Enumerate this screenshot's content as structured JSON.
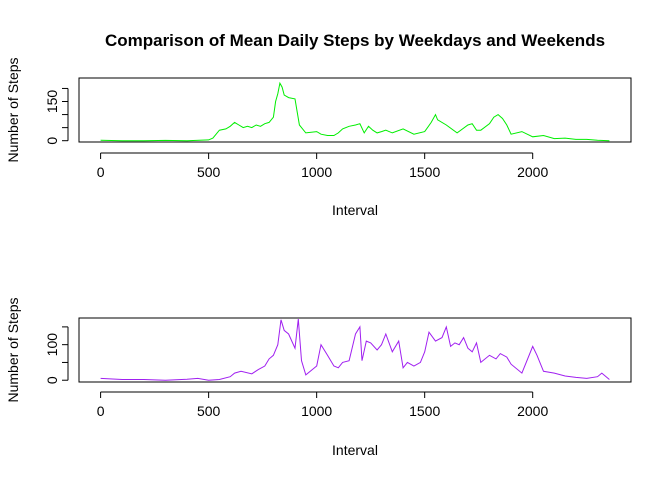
{
  "chart_data": [
    {
      "type": "line",
      "title": "Comparison of Mean Daily Steps by Weekdays and Weekends",
      "xlabel": "Interval",
      "ylabel": "Number of Steps",
      "xlim": [
        -100,
        2455
      ],
      "ylim": [
        -5,
        240
      ],
      "xticks": [
        0,
        500,
        1000,
        1500,
        2000
      ],
      "yticks": [
        0,
        50,
        100,
        150,
        200
      ],
      "ytick_labels": [
        "0",
        "",
        "",
        "150",
        ""
      ],
      "color": "#00ee00",
      "series": [
        {
          "x": [
            0,
            100,
            200,
            300,
            400,
            500,
            520,
            550,
            580,
            600,
            620,
            640,
            660,
            680,
            700,
            720,
            740,
            760,
            780,
            800,
            810,
            820,
            830,
            840,
            850,
            860,
            870,
            900,
            910,
            920,
            950,
            1000,
            1020,
            1050,
            1080,
            1100,
            1120,
            1150,
            1180,
            1200,
            1220,
            1240,
            1260,
            1280,
            1300,
            1320,
            1350,
            1400,
            1450,
            1500,
            1530,
            1550,
            1560,
            1600,
            1650,
            1700,
            1720,
            1740,
            1760,
            1800,
            1820,
            1840,
            1860,
            1880,
            1900,
            1950,
            2000,
            2050,
            2100,
            2150,
            2200,
            2250,
            2300,
            2355
          ],
          "y": [
            2,
            0,
            0,
            1,
            0,
            3,
            10,
            40,
            45,
            55,
            70,
            60,
            50,
            55,
            50,
            60,
            55,
            65,
            70,
            90,
            150,
            180,
            220,
            205,
            175,
            170,
            165,
            160,
            110,
            60,
            30,
            35,
            25,
            20,
            20,
            30,
            45,
            55,
            60,
            65,
            30,
            55,
            40,
            30,
            35,
            40,
            30,
            45,
            25,
            35,
            70,
            100,
            80,
            60,
            30,
            60,
            65,
            40,
            40,
            65,
            90,
            100,
            85,
            60,
            25,
            35,
            15,
            20,
            8,
            10,
            5,
            5,
            2,
            0
          ]
        }
      ]
    },
    {
      "type": "line",
      "title": "",
      "xlabel": "Interval",
      "ylabel": "Number of Steps",
      "xlim": [
        -100,
        2455
      ],
      "ylim": [
        -5,
        175
      ],
      "xticks": [
        0,
        500,
        1000,
        1500,
        2000
      ],
      "yticks": [
        0,
        50,
        100,
        150
      ],
      "ytick_labels": [
        "0",
        "",
        "100",
        ""
      ],
      "color": "#a020f0",
      "series": [
        {
          "x": [
            0,
            100,
            200,
            300,
            400,
            450,
            500,
            550,
            600,
            620,
            650,
            700,
            730,
            760,
            780,
            800,
            820,
            835,
            850,
            870,
            900,
            915,
            930,
            950,
            1000,
            1020,
            1050,
            1080,
            1100,
            1120,
            1150,
            1180,
            1200,
            1210,
            1230,
            1250,
            1280,
            1300,
            1320,
            1350,
            1380,
            1400,
            1420,
            1450,
            1480,
            1500,
            1520,
            1550,
            1580,
            1600,
            1620,
            1640,
            1660,
            1680,
            1700,
            1720,
            1740,
            1760,
            1800,
            1830,
            1850,
            1880,
            1900,
            1950,
            2000,
            2020,
            2050,
            2100,
            2150,
            2200,
            2250,
            2300,
            2320,
            2355
          ],
          "y": [
            5,
            2,
            2,
            0,
            3,
            5,
            0,
            2,
            10,
            20,
            25,
            18,
            30,
            40,
            60,
            70,
            100,
            170,
            140,
            130,
            90,
            172,
            55,
            15,
            40,
            100,
            70,
            40,
            35,
            50,
            55,
            130,
            150,
            55,
            110,
            105,
            85,
            100,
            130,
            80,
            110,
            35,
            50,
            40,
            50,
            80,
            135,
            110,
            120,
            150,
            95,
            105,
            100,
            120,
            90,
            80,
            105,
            50,
            70,
            60,
            75,
            65,
            45,
            20,
            95,
            70,
            25,
            20,
            12,
            8,
            5,
            10,
            20,
            2
          ]
        }
      ]
    }
  ]
}
